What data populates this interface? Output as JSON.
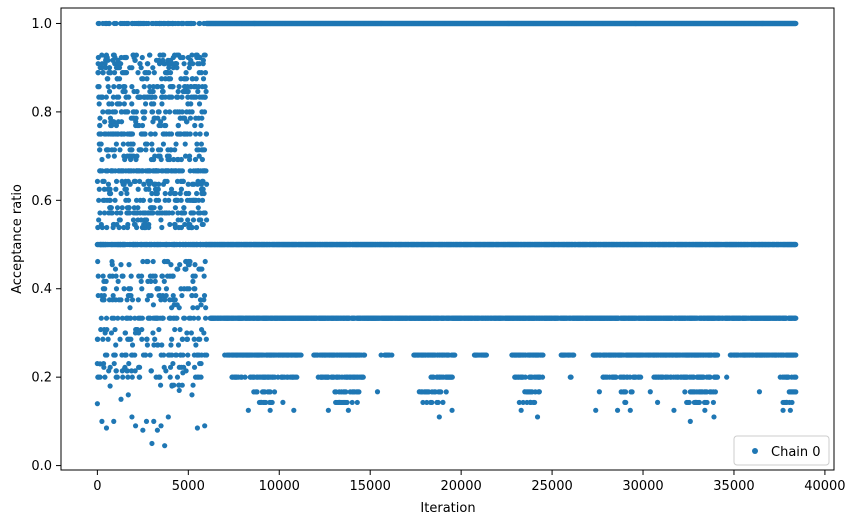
{
  "chart_data": {
    "type": "scatter",
    "title": "",
    "xlabel": "Iteration",
    "ylabel": "Acceptance ratio",
    "xlim": [
      -2000,
      40500
    ],
    "ylim": [
      -0.01,
      1.035
    ],
    "x_ticks": [
      0,
      5000,
      10000,
      15000,
      20000,
      25000,
      30000,
      35000,
      40000
    ],
    "x_tick_labels": [
      "0",
      "5000",
      "10000",
      "15000",
      "20000",
      "25000",
      "30000",
      "35000",
      "40000"
    ],
    "y_ticks": [
      0.0,
      0.2,
      0.4,
      0.6,
      0.8,
      1.0
    ],
    "y_tick_labels": [
      "0.0",
      "0.2",
      "0.4",
      "0.6",
      "0.8",
      "1.0"
    ],
    "grid": false,
    "legend": {
      "placement": "bottom-right",
      "entries": [
        "Chain 0"
      ]
    },
    "marker_color": "#1f77b4",
    "x_max_iteration": 38400,
    "burn_in_end": 6000,
    "series": [
      {
        "name": "Chain 0",
        "description_levels": {
          "early_phase_range": [
            0,
            6000
          ],
          "early_phase_y_range": [
            0.04,
            0.93
          ],
          "late_phase_levels": [
            1.0,
            0.5,
            0.3333,
            0.25,
            0.2,
            0.1667,
            0.1429,
            0.125,
            0.1111
          ]
        },
        "points": [
          [
            100,
            1.0
          ],
          [
            300,
            1.0
          ],
          [
            600,
            1.0
          ],
          [
            1300,
            1.0
          ],
          [
            1500,
            1.0
          ],
          [
            1900,
            1.0
          ],
          [
            2300,
            1.0
          ],
          [
            2600,
            1.0
          ],
          [
            3000,
            1.0
          ],
          [
            3400,
            1.0
          ],
          [
            3900,
            1.0
          ],
          [
            4300,
            1.0
          ],
          [
            4700,
            1.0
          ],
          [
            5200,
            1.0
          ],
          [
            5600,
            1.0
          ],
          [
            6000,
            1.0
          ],
          [
            0,
            0.14
          ],
          [
            150,
            0.23
          ],
          [
            250,
            0.1
          ],
          [
            500,
            0.085
          ],
          [
            700,
            0.18
          ],
          [
            900,
            0.1
          ],
          [
            1100,
            0.2
          ],
          [
            1300,
            0.15
          ],
          [
            1500,
            0.22
          ],
          [
            1700,
            0.16
          ],
          [
            1900,
            0.11
          ],
          [
            2100,
            0.09
          ],
          [
            2300,
            0.2
          ],
          [
            2500,
            0.08
          ],
          [
            2700,
            0.1
          ],
          [
            2900,
            0.25
          ],
          [
            3000,
            0.05
          ],
          [
            3100,
            0.1
          ],
          [
            3300,
            0.08
          ],
          [
            3500,
            0.09
          ],
          [
            3700,
            0.045
          ],
          [
            3900,
            0.11
          ],
          [
            4100,
            0.18
          ],
          [
            4300,
            0.25
          ],
          [
            4500,
            0.17
          ],
          [
            4700,
            0.21
          ],
          [
            5200,
            0.16
          ],
          [
            5500,
            0.085
          ],
          [
            5700,
            0.2
          ],
          [
            5900,
            0.09
          ],
          [
            8300,
            0.125
          ],
          [
            9500,
            0.125
          ],
          [
            10800,
            0.125
          ],
          [
            12700,
            0.125
          ],
          [
            13800,
            0.125
          ],
          [
            18800,
            0.11
          ],
          [
            19500,
            0.125
          ],
          [
            23300,
            0.125
          ],
          [
            24200,
            0.11
          ],
          [
            27400,
            0.125
          ],
          [
            28600,
            0.125
          ],
          [
            29300,
            0.125
          ],
          [
            31700,
            0.125
          ],
          [
            32600,
            0.1
          ],
          [
            33400,
            0.125
          ],
          [
            33900,
            0.11
          ],
          [
            37700,
            0.125
          ],
          [
            38100,
            0.125
          ],
          [
            15400,
            0.167
          ],
          [
            17700,
            0.167
          ],
          [
            23500,
            0.167
          ],
          [
            24300,
            0.167
          ],
          [
            27600,
            0.167
          ],
          [
            30400,
            0.167
          ],
          [
            36400,
            0.167
          ],
          [
            12300,
            0.2
          ],
          [
            12700,
            0.2
          ],
          [
            26000,
            0.2
          ],
          [
            34600,
            0.2
          ],
          [
            20800,
            0.25
          ],
          [
            21300,
            0.25
          ],
          [
            25600,
            0.25
          ],
          [
            15600,
            0.25
          ],
          [
            9000,
            0.143
          ],
          [
            10200,
            0.143
          ],
          [
            13300,
            0.143
          ],
          [
            19000,
            0.143
          ],
          [
            23800,
            0.143
          ],
          [
            29000,
            0.143
          ],
          [
            30800,
            0.143
          ],
          [
            32900,
            0.143
          ],
          [
            37900,
            0.143
          ]
        ]
      }
    ]
  }
}
